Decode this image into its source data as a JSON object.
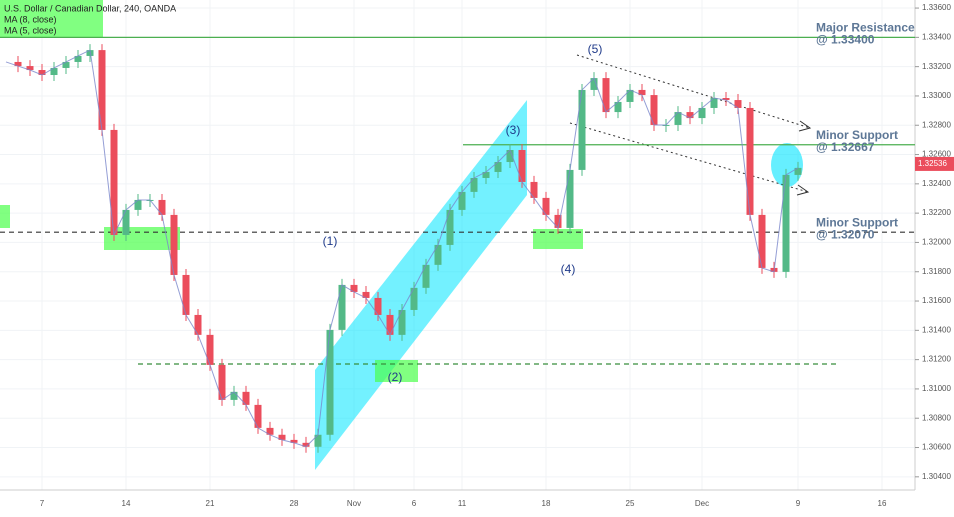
{
  "chart_data": {
    "type": "candlestick",
    "title": "U.S. Dollar / Canadian Dollar, 240, OANDA",
    "legend": [
      "MA (8, close)",
      "MA (5, close)"
    ],
    "categories": [
      null,
      null,
      null,
      "7",
      null,
      null,
      null,
      null,
      null,
      null,
      "14",
      null,
      null,
      null,
      null,
      null,
      null,
      "21",
      null,
      null,
      null,
      null,
      null,
      null,
      "28",
      null,
      null,
      null,
      null,
      "Nov",
      null,
      null,
      null,
      null,
      "6",
      null,
      null,
      null,
      "11",
      null,
      null,
      null,
      null,
      null,
      null,
      "18",
      null,
      null,
      null,
      null,
      null,
      null,
      "25",
      null,
      null,
      null,
      null,
      null,
      "Dec",
      null,
      null,
      null,
      null,
      null,
      null,
      null,
      "9",
      null,
      null,
      null,
      null,
      null,
      null,
      "16",
      null,
      null,
      null
    ],
    "values": [
      1.33232,
      1.33204,
      1.33177,
      1.33143,
      1.33191,
      1.33232,
      1.33273,
      1.33313,
      1.32768,
      1.32051,
      1.32222,
      1.3229,
      1.3229,
      1.32188,
      1.31778,
      1.31505,
      1.31369,
      1.31164,
      1.30925,
      1.3098,
      1.30891,
      1.30734,
      1.30687,
      1.30652,
      1.30632,
      1.30605,
      1.30687,
      1.31403,
      1.3171,
      1.31662,
      1.31621,
      1.31505,
      1.31369,
      1.31539,
      1.3169,
      1.31847,
      1.31983,
      1.32222,
      1.32345,
      1.3244,
      1.32481,
      1.32549,
      1.32631,
      1.32413,
      1.32304,
      1.32188,
      1.32099,
      1.32495,
      1.33041,
      1.33122,
      1.3289,
      1.32959,
      1.33041,
      1.33006,
      1.32802,
      1.32802,
      1.3289,
      1.32849,
      1.32918,
      1.32986,
      1.32972,
      1.32918,
      1.32188,
      1.31826,
      1.31799,
      1.32461,
      1.32509,
      null,
      null,
      null,
      null,
      null,
      null,
      null,
      null,
      null,
      null
    ],
    "up_color": "#53b987",
    "down_color": "#eb4d5c",
    "ylim": [
      1.3031,
      1.33655
    ],
    "yticks": [
      {
        "value": 1.304,
        "label": "1.30400"
      },
      {
        "value": 1.306,
        "label": "1.30600"
      },
      {
        "value": 1.308,
        "label": "1.30800"
      },
      {
        "value": 1.31,
        "label": "1.31000"
      },
      {
        "value": 1.312,
        "label": "1.31200"
      },
      {
        "value": 1.314,
        "label": "1.31400"
      },
      {
        "value": 1.316,
        "label": "1.31600"
      },
      {
        "value": 1.318,
        "label": "1.31800"
      },
      {
        "value": 1.32,
        "label": "1.32000"
      },
      {
        "value": 1.322,
        "label": "1.32200"
      },
      {
        "value": 1.324,
        "label": "1.32400"
      },
      {
        "value": 1.326,
        "label": "1.32600"
      },
      {
        "value": 1.328,
        "label": "1.32800"
      },
      {
        "value": 1.33,
        "label": "1.33000"
      },
      {
        "value": 1.332,
        "label": "1.33200"
      },
      {
        "value": 1.334,
        "label": "1.33400"
      },
      {
        "value": 1.336,
        "label": "1.33600"
      }
    ],
    "grid": true,
    "last_price": {
      "value": 1.32536,
      "label": "1.32536"
    },
    "levels": [
      {
        "value": 1.334,
        "color": "#4caf50",
        "style": "solid",
        "label": "Major Resistance",
        "sublabel": "@ 1.33400"
      },
      {
        "value": 1.32667,
        "color": "#4caf50",
        "style": "solid",
        "label": "Minor Support",
        "sublabel": "@ 1.32667"
      },
      {
        "value": 1.3207,
        "color": "#333333",
        "style": "dashed",
        "label": "Minor Support",
        "sublabel": "@ 1.32070"
      },
      {
        "value": 1.3117,
        "color": "#388e3c",
        "style": "dashed"
      }
    ],
    "waves": [
      "(1)",
      "(2)",
      "(3)",
      "(4)",
      "(5)"
    ]
  }
}
